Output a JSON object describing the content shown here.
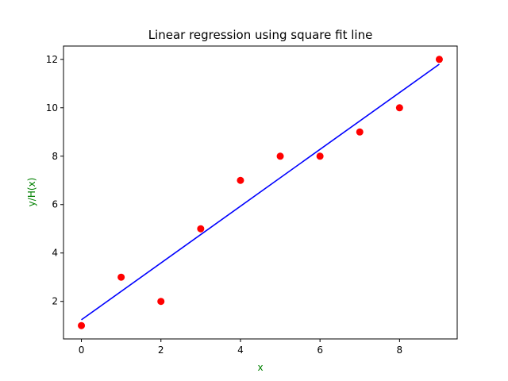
{
  "chart_data": {
    "type": "scatter",
    "title": "Linear regression using square fit line",
    "xlabel": "x",
    "ylabel": "y/H(x)",
    "label_color": "#008000",
    "xlim": [
      -0.45,
      9.45
    ],
    "ylim": [
      0.45,
      12.55
    ],
    "x_ticks": [
      0,
      2,
      4,
      6,
      8
    ],
    "y_ticks": [
      2,
      4,
      6,
      8,
      10,
      12
    ],
    "grid": false,
    "series": [
      {
        "kind": "points",
        "color": "#ff0000",
        "x": [
          0,
          1,
          2,
          3,
          4,
          5,
          6,
          7,
          8,
          9
        ],
        "y": [
          1,
          3,
          2,
          5,
          7,
          8,
          8,
          9,
          10,
          12
        ]
      },
      {
        "kind": "fit-line",
        "color": "#0000ff",
        "x": [
          0,
          9
        ],
        "y": [
          1.24,
          11.8
        ]
      }
    ]
  }
}
